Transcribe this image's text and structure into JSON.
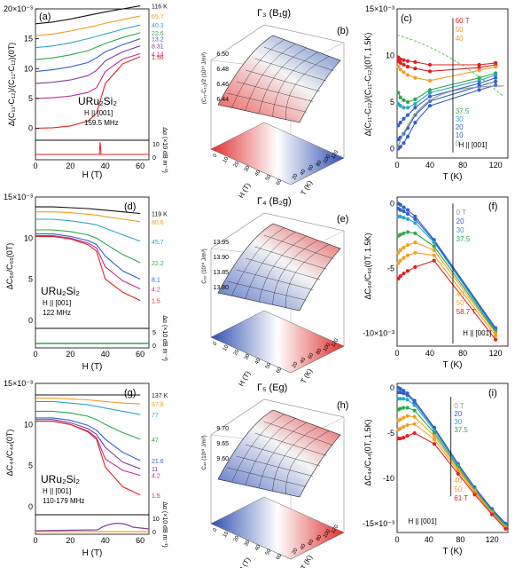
{
  "colors": {
    "black": "#111111",
    "orange": "#f0a020",
    "teal": "#2aa6c8",
    "green": "#2ea84a",
    "blue": "#3060c8",
    "purple": "#8040a0",
    "magenta": "#c03090",
    "red": "#e02020",
    "grey": "#999999",
    "dashgreen": "#44bb44"
  },
  "panels": {
    "a": {
      "letter": "(a)",
      "exp": "20×10",
      "exp_sup": "-3",
      "ylabel": "Δ(C₁₁-C₁₂)/(C₁₁-C₁₂)(0T)",
      "xlabel": "H (T)",
      "material": "URu₂Si₂",
      "field": "H || [001]",
      "freq": "159.5 MHz",
      "temps": [
        "116 K",
        "65.7",
        "40.3",
        "22.6",
        "13.2",
        "8.31",
        "4.14",
        "1.56"
      ],
      "sublabel": "Δα (×10 dB m⁻¹)",
      "subtick": "0",
      "xticks": [
        "0",
        "20",
        "40",
        "60"
      ],
      "yticks": [
        "20×10⁻³",
        "15",
        "10",
        "5",
        "0"
      ],
      "subtop": "10"
    },
    "b": {
      "letter": "(b)",
      "title": "Γ₃ (B₁g)",
      "zlabel": "(C₁₁-C₁₂)/2 (10¹⁰ J/m³)",
      "zticks": [
        "6.50",
        "6.48",
        "6.46",
        "6.44"
      ],
      "xlabel": "H (T)",
      "ylabel": "T (K)",
      "xticks": [
        "0",
        "10",
        "20",
        "30",
        "40",
        "50",
        "60"
      ],
      "yticks": [
        "20",
        "40",
        "60",
        "80",
        "100",
        "120"
      ]
    },
    "c": {
      "letter": "(c)",
      "exp": "15×10",
      "exp_sup": "-3",
      "ylabel": "Δ(C₁₁-C₁₂)/(C₁₁-C₁₂)(0T, 1.5K)",
      "xlabel": "T (K)",
      "fields_top": [
        "60 T",
        "50",
        "40"
      ],
      "fields_bottom": [
        "37.5",
        "30",
        "20",
        "10",
        "0"
      ],
      "field": "H || [001]",
      "xticks": [
        "0",
        "40",
        "80",
        "120"
      ],
      "yticks": [
        "15×10⁻³",
        "10",
        "5",
        "0"
      ]
    },
    "d": {
      "letter": "(d)",
      "exp": "15×10",
      "exp_sup": "-3",
      "ylabel": "ΔC₆₆/C₆₆(0T)",
      "xlabel": "H (T)",
      "material": "URu₂Si₂",
      "field": "H || [001]",
      "freq": "122 MHz",
      "temps": [
        "119 K",
        "80.6",
        "45.7",
        "22.2",
        "8.1",
        "4.2",
        "1.5"
      ],
      "sublabel": "Δα (×10 dB m⁻¹)",
      "xticks": [
        "0",
        "20",
        "40",
        "60"
      ],
      "yticks": [
        "15×10⁻³",
        "10",
        "5",
        "0"
      ],
      "subtop": "5",
      "subtick": "0"
    },
    "e": {
      "letter": "(e)",
      "title": "Γ₄ (B₂g)",
      "zlabel": "C₆₆ (10¹⁰ J/m³)",
      "zticks": [
        "13.95",
        "13.90",
        "13.85",
        "13.80"
      ],
      "xlabel": "H (T)",
      "ylabel": "T (K)",
      "xticks": [
        "0",
        "10",
        "20",
        "30",
        "40",
        "50",
        "60"
      ],
      "yticks": [
        "20",
        "40",
        "60",
        "80",
        "100",
        "120"
      ]
    },
    "f": {
      "letter": "(f)",
      "ylabel": "ΔC₆₆/C₆₆(0T, 1.5K)",
      "xlabel": "T (K)",
      "exp": "0",
      "exp_sup": "",
      "fields_top": [
        "0 T",
        "20",
        "30",
        "37.5"
      ],
      "fields_bottom": [
        "40",
        "50",
        "58.7 T"
      ],
      "field": "H || [001]",
      "xticks": [
        "0",
        "40",
        "80",
        "120"
      ],
      "yticks": [
        "0",
        "-5",
        "-10×10⁻³"
      ]
    },
    "g": {
      "letter": "(g)",
      "exp": "15×10",
      "exp_sup": "-3",
      "ylabel": "ΔC₄₄/C₄₄(0T)",
      "xlabel": "H (T)",
      "material": "URu₂Si₂",
      "field": "H || [001]",
      "freq": "110-179 MHz",
      "temps": [
        "137 K",
        "97.8",
        "77",
        "47",
        "21.6",
        "11",
        "4.2",
        "1.5"
      ],
      "sublabel": "Δα (×10 dB m⁻¹)",
      "xticks": [
        "0",
        "20",
        "40",
        "60"
      ],
      "yticks": [
        "15×10⁻³",
        "10",
        "5",
        "0"
      ],
      "subtop": "10",
      "subtick": "0"
    },
    "h": {
      "letter": "(h)",
      "title": "Γ₅ (Eg)",
      "zlabel": "C₄₄ (10¹⁰ J/m³)",
      "zticks": [
        "9.70",
        "9.65",
        "9.60"
      ],
      "xlabel": "H (T)",
      "ylabel": "T (K)",
      "xticks": [
        "0",
        "10",
        "20",
        "30",
        "40",
        "50",
        "60"
      ],
      "yticks": [
        "20",
        "40",
        "60",
        "80",
        "100",
        "120"
      ]
    },
    "i": {
      "letter": "(i)",
      "ylabel": "ΔC₄₄/C₄₄(0T, 1.5K)",
      "xlabel": "T (K)",
      "exp": "0",
      "exp_sup": "",
      "fields_top": [
        "0 T",
        "20",
        "30",
        "37.5"
      ],
      "fields_bottom": [
        "40",
        "50",
        "61 T"
      ],
      "field": "H || [001]",
      "xticks": [
        "0",
        "40",
        "80",
        "120"
      ],
      "yticks": [
        "0",
        "-5",
        "-10",
        "-15×10⁻³"
      ]
    }
  },
  "chart_data": [
    {
      "type": "line",
      "panel": "a",
      "xlabel": "H (T)",
      "ylabel": "Δ(C11-C12)/(C11-C12)(0T)",
      "xlim": [
        0,
        65
      ],
      "ylim": [
        -2,
        20
      ],
      "x": [
        0,
        10,
        20,
        30,
        35,
        40,
        50,
        60
      ],
      "series": [
        {
          "name": "116 K",
          "values": [
            17.5,
            17.8,
            18.3,
            18.9,
            19.2,
            19.5,
            20.0,
            20.5
          ]
        },
        {
          "name": "65.7",
          "values": [
            15.5,
            15.8,
            16.3,
            16.9,
            17.2,
            17.6,
            18.2,
            18.8
          ]
        },
        {
          "name": "40.3",
          "values": [
            13.5,
            13.8,
            14.3,
            15.0,
            15.4,
            15.8,
            16.6,
            17.3
          ]
        },
        {
          "name": "22.6",
          "values": [
            11.5,
            11.8,
            12.3,
            13.0,
            13.6,
            14.2,
            15.2,
            16.0
          ]
        },
        {
          "name": "13.2",
          "values": [
            9.5,
            9.8,
            10.3,
            11.0,
            11.8,
            12.8,
            14.0,
            15.0
          ]
        },
        {
          "name": "8.31",
          "values": [
            7.5,
            7.7,
            8.1,
            8.8,
            9.7,
            11.3,
            12.8,
            13.8
          ]
        },
        {
          "name": "4.14",
          "values": [
            5.0,
            5.1,
            5.4,
            6.0,
            6.8,
            9.5,
            11.6,
            12.5
          ]
        },
        {
          "name": "1.56",
          "values": [
            0.0,
            0.1,
            0.4,
            1.2,
            2.5,
            7.5,
            10.8,
            12.0
          ]
        }
      ]
    },
    {
      "type": "line",
      "panel": "c",
      "xlabel": "T (K)",
      "ylabel": "Δ(C11-C12)/(C11-C12)(0T, 1.5K)",
      "xlim": [
        0,
        135
      ],
      "ylim": [
        -1,
        15
      ],
      "x": [
        1.5,
        4,
        8,
        13,
        22,
        40,
        65,
        100,
        120
      ],
      "series": [
        {
          "name": "60 T",
          "values": [
            9.8,
            9.6,
            9.5,
            9.4,
            9.3,
            9.0,
            null,
            9.0,
            9.2
          ]
        },
        {
          "name": "50",
          "values": [
            9.4,
            9.2,
            9.0,
            8.8,
            8.6,
            8.3,
            null,
            8.7,
            9.0
          ]
        },
        {
          "name": "40",
          "values": [
            8.8,
            8.5,
            8.2,
            7.9,
            7.6,
            7.3,
            null,
            8.4,
            8.8
          ]
        },
        {
          "name": "37.5",
          "values": [
            6.0,
            5.5,
            5.2,
            5.0,
            5.3,
            6.3,
            null,
            7.6,
            8.1
          ]
        },
        {
          "name": "30",
          "values": [
            4.8,
            4.6,
            4.4,
            4.4,
            4.8,
            6.0,
            null,
            7.3,
            7.9
          ]
        },
        {
          "name": "20",
          "values": [
            2.5,
            2.8,
            3.2,
            3.6,
            4.4,
            5.6,
            null,
            7.0,
            7.6
          ]
        },
        {
          "name": "10",
          "values": [
            1.0,
            1.2,
            1.6,
            2.2,
            3.6,
            5.1,
            null,
            6.7,
            7.2
          ]
        },
        {
          "name": "0",
          "values": [
            0.0,
            0.2,
            0.6,
            1.3,
            2.8,
            4.6,
            null,
            6.3,
            6.8
          ]
        }
      ]
    },
    {
      "type": "line",
      "panel": "d",
      "xlabel": "H (T)",
      "ylabel": "ΔC66/C66(0T)",
      "xlim": [
        0,
        65
      ],
      "ylim": [
        -1,
        15
      ],
      "x": [
        0,
        10,
        20,
        30,
        35,
        40,
        50,
        60
      ],
      "series": [
        {
          "name": "119 K",
          "values": [
            13.8,
            13.8,
            13.7,
            13.6,
            13.5,
            13.4,
            13.2,
            13.0
          ]
        },
        {
          "name": "80.6",
          "values": [
            13.2,
            13.2,
            13.1,
            12.9,
            12.8,
            12.6,
            12.3,
            12.0
          ]
        },
        {
          "name": "45.7",
          "values": [
            12.3,
            12.3,
            12.1,
            11.8,
            11.6,
            11.2,
            10.4,
            9.6
          ]
        },
        {
          "name": "22.2",
          "values": [
            11.0,
            11.0,
            10.8,
            10.4,
            10.0,
            9.3,
            8.0,
            7.0
          ]
        },
        {
          "name": "8.1",
          "values": [
            10.5,
            10.5,
            10.2,
            9.7,
            9.2,
            7.8,
            6.0,
            5.0
          ]
        },
        {
          "name": "4.2",
          "values": [
            10.3,
            10.3,
            10.0,
            9.4,
            8.8,
            6.5,
            4.8,
            3.8
          ]
        },
        {
          "name": "1.5",
          "values": [
            10.2,
            10.2,
            9.9,
            9.2,
            8.4,
            5.0,
            3.4,
            2.4
          ]
        }
      ]
    },
    {
      "type": "line",
      "panel": "f",
      "xlabel": "T (K)",
      "ylabel": "ΔC66/C66(0T, 1.5K)",
      "xlim": [
        0,
        135
      ],
      "ylim": [
        -11,
        0.5
      ],
      "x": [
        1.5,
        4,
        8,
        13,
        22,
        45,
        120
      ],
      "series": [
        {
          "name": "0 T",
          "values": [
            0.0,
            -0.1,
            -0.3,
            -0.5,
            -1.0,
            -2.8,
            -9.6
          ]
        },
        {
          "name": "20",
          "values": [
            -0.4,
            -0.5,
            -0.6,
            -0.8,
            -1.2,
            -2.9,
            -9.7
          ]
        },
        {
          "name": "30",
          "values": [
            -1.0,
            -1.0,
            -1.1,
            -1.2,
            -1.5,
            -3.0,
            -9.8
          ]
        },
        {
          "name": "37.5",
          "values": [
            -2.5,
            -2.4,
            -2.3,
            -2.2,
            -2.3,
            -3.3,
            -9.9
          ]
        },
        {
          "name": "40",
          "values": [
            -3.8,
            -3.6,
            -3.4,
            -3.2,
            -3.0,
            -3.6,
            -10.0
          ]
        },
        {
          "name": "50",
          "values": [
            -4.6,
            -4.4,
            -4.2,
            -4.0,
            -3.8,
            -4.0,
            -10.2
          ]
        },
        {
          "name": "58.7 T",
          "values": [
            -5.8,
            -5.6,
            -5.4,
            -5.2,
            -4.9,
            -4.4,
            -10.5
          ]
        }
      ]
    },
    {
      "type": "line",
      "panel": "g",
      "xlabel": "H (T)",
      "ylabel": "ΔC44/C44(0T)",
      "xlim": [
        0,
        65
      ],
      "ylim": [
        -1,
        15
      ],
      "x": [
        0,
        10,
        20,
        30,
        35,
        40,
        50,
        60
      ],
      "series": [
        {
          "name": "137 K",
          "values": [
            13.6,
            13.6,
            13.6,
            13.6,
            13.6,
            13.6,
            13.6,
            13.6
          ]
        },
        {
          "name": "97.8",
          "values": [
            13.2,
            13.2,
            13.1,
            13.0,
            12.9,
            12.8,
            12.6,
            12.5
          ]
        },
        {
          "name": "77",
          "values": [
            12.8,
            12.8,
            12.6,
            12.4,
            12.2,
            12.0,
            11.6,
            11.2
          ]
        },
        {
          "name": "47",
          "values": [
            11.6,
            11.6,
            11.4,
            11.0,
            10.6,
            10.0,
            9.0,
            8.2
          ]
        },
        {
          "name": "21.6",
          "values": [
            10.8,
            10.8,
            10.5,
            9.9,
            9.3,
            8.2,
            6.6,
            5.6
          ]
        },
        {
          "name": "11",
          "values": [
            10.6,
            10.6,
            10.2,
            9.5,
            8.8,
            7.2,
            5.4,
            4.6
          ]
        },
        {
          "name": "4.2",
          "values": [
            10.4,
            10.4,
            10.0,
            9.2,
            8.4,
            5.8,
            4.4,
            3.8
          ]
        },
        {
          "name": "1.5",
          "values": [
            10.4,
            10.4,
            10.0,
            9.1,
            8.2,
            4.8,
            2.4,
            1.4
          ]
        }
      ]
    },
    {
      "type": "line",
      "panel": "i",
      "xlabel": "T (K)",
      "ylabel": "ΔC44/C44(0T, 1.5K)",
      "xlim": [
        0,
        140
      ],
      "ylim": [
        -16,
        0.5
      ],
      "x": [
        1.5,
        4,
        8,
        13,
        22,
        47,
        77,
        98,
        120,
        137
      ],
      "series": [
        {
          "name": "0 T",
          "values": [
            0.0,
            -0.1,
            -0.3,
            -0.6,
            -1.4,
            -4.4,
            -8.4,
            -11.0,
            -13.4,
            -15.0
          ]
        },
        {
          "name": "20",
          "values": [
            -0.5,
            -0.5,
            -0.6,
            -0.8,
            -1.6,
            -4.5,
            -8.5,
            -11.1,
            -13.5,
            -15.1
          ]
        },
        {
          "name": "30",
          "values": [
            -1.2,
            -1.2,
            -1.2,
            -1.3,
            -1.9,
            -4.7,
            -8.6,
            -11.2,
            -13.6,
            -15.2
          ]
        },
        {
          "name": "37.5",
          "values": [
            -2.4,
            -2.3,
            -2.2,
            -2.2,
            -2.5,
            -5.0,
            -8.8,
            -11.3,
            -13.7,
            -15.3
          ]
        },
        {
          "name": "40",
          "values": [
            -3.6,
            -3.5,
            -3.3,
            -3.1,
            -3.2,
            -5.3,
            -9.0,
            -11.4,
            -13.8,
            -15.4
          ]
        },
        {
          "name": "50",
          "values": [
            -4.6,
            -4.5,
            -4.3,
            -4.1,
            -4.0,
            -5.7,
            -9.2,
            -11.6,
            -13.9,
            -15.5
          ]
        },
        {
          "name": "61 T",
          "values": [
            -5.6,
            -5.6,
            -5.5,
            -5.3,
            -5.0,
            -6.2,
            -9.5,
            -11.8,
            -14.0,
            -15.6
          ]
        }
      ]
    }
  ]
}
